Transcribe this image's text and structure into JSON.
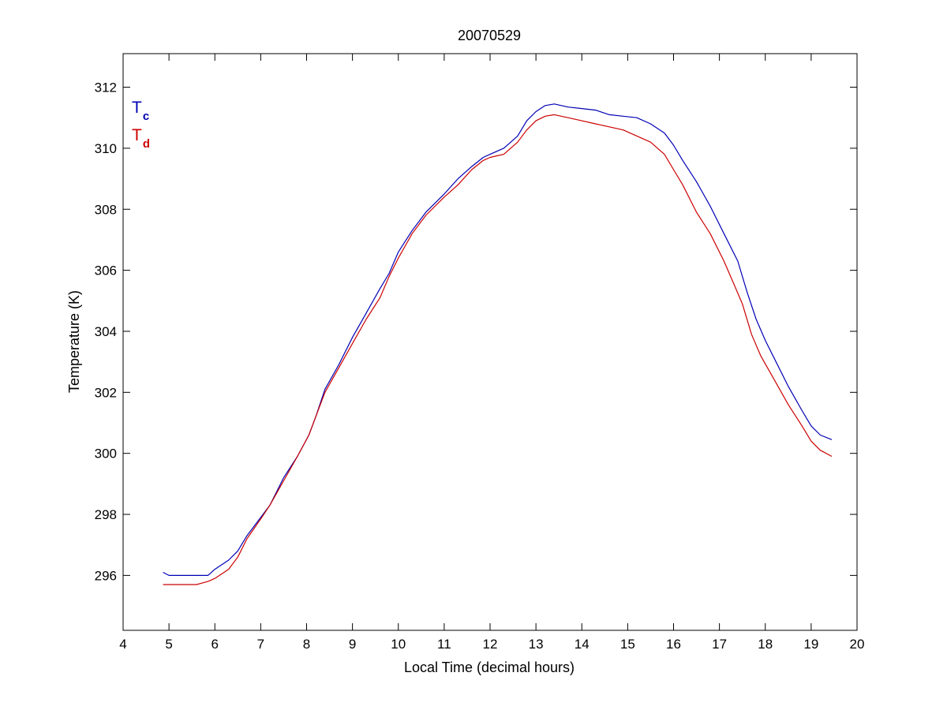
{
  "chart_data": {
    "type": "line",
    "title": "20070529",
    "xlabel": "Local Time (decimal hours)",
    "ylabel": "Temperature (K)",
    "xlim": [
      4,
      20
    ],
    "ylim": [
      294.2,
      313.1
    ],
    "xticks": [
      4,
      5,
      6,
      7,
      8,
      9,
      10,
      11,
      12,
      13,
      14,
      15,
      16,
      17,
      18,
      19,
      20
    ],
    "yticks": [
      296,
      298,
      300,
      302,
      304,
      306,
      308,
      310,
      312
    ],
    "grid": false,
    "legend_position": "top-left",
    "series": [
      {
        "name": "T",
        "subscript": "c",
        "color": "#0000b4",
        "points": [
          [
            4.87,
            296.1
          ],
          [
            5.0,
            296.0
          ],
          [
            5.3,
            296.0
          ],
          [
            5.6,
            296.0
          ],
          [
            5.85,
            296.0
          ],
          [
            6.0,
            296.2
          ],
          [
            6.3,
            296.5
          ],
          [
            6.5,
            296.8
          ],
          [
            6.7,
            297.3
          ],
          [
            7.0,
            297.9
          ],
          [
            7.2,
            298.3
          ],
          [
            7.5,
            299.2
          ],
          [
            7.8,
            299.9
          ],
          [
            8.05,
            300.6
          ],
          [
            8.2,
            301.2
          ],
          [
            8.4,
            302.1
          ],
          [
            8.7,
            302.9
          ],
          [
            9.0,
            303.8
          ],
          [
            9.3,
            304.6
          ],
          [
            9.6,
            305.4
          ],
          [
            9.8,
            305.9
          ],
          [
            10.0,
            306.6
          ],
          [
            10.3,
            307.3
          ],
          [
            10.6,
            307.9
          ],
          [
            11.0,
            308.5
          ],
          [
            11.3,
            309.0
          ],
          [
            11.6,
            309.4
          ],
          [
            11.85,
            309.7
          ],
          [
            12.0,
            309.8
          ],
          [
            12.3,
            310.0
          ],
          [
            12.6,
            310.4
          ],
          [
            12.8,
            310.9
          ],
          [
            13.0,
            311.2
          ],
          [
            13.2,
            311.4
          ],
          [
            13.4,
            311.45
          ],
          [
            13.7,
            311.35
          ],
          [
            14.0,
            311.3
          ],
          [
            14.3,
            311.25
          ],
          [
            14.6,
            311.1
          ],
          [
            14.9,
            311.05
          ],
          [
            15.2,
            311.0
          ],
          [
            15.5,
            310.8
          ],
          [
            15.8,
            310.5
          ],
          [
            16.0,
            310.1
          ],
          [
            16.2,
            309.6
          ],
          [
            16.5,
            308.9
          ],
          [
            16.8,
            308.1
          ],
          [
            17.1,
            307.2
          ],
          [
            17.4,
            306.3
          ],
          [
            17.6,
            305.3
          ],
          [
            17.8,
            304.4
          ],
          [
            18.0,
            303.7
          ],
          [
            18.2,
            303.1
          ],
          [
            18.5,
            302.2
          ],
          [
            18.8,
            301.4
          ],
          [
            19.0,
            300.9
          ],
          [
            19.2,
            300.6
          ],
          [
            19.45,
            300.45
          ]
        ]
      },
      {
        "name": "T",
        "subscript": "d",
        "color": "#cc0000",
        "points": [
          [
            4.87,
            295.7
          ],
          [
            5.0,
            295.7
          ],
          [
            5.3,
            295.7
          ],
          [
            5.6,
            295.7
          ],
          [
            5.85,
            295.8
          ],
          [
            6.0,
            295.9
          ],
          [
            6.3,
            296.2
          ],
          [
            6.5,
            296.6
          ],
          [
            6.7,
            297.2
          ],
          [
            7.0,
            297.85
          ],
          [
            7.2,
            298.3
          ],
          [
            7.5,
            299.1
          ],
          [
            7.8,
            299.9
          ],
          [
            8.05,
            300.6
          ],
          [
            8.2,
            301.2
          ],
          [
            8.4,
            302.0
          ],
          [
            8.7,
            302.8
          ],
          [
            9.0,
            303.6
          ],
          [
            9.3,
            304.4
          ],
          [
            9.6,
            305.1
          ],
          [
            9.8,
            305.8
          ],
          [
            10.0,
            306.4
          ],
          [
            10.3,
            307.2
          ],
          [
            10.6,
            307.8
          ],
          [
            11.0,
            308.4
          ],
          [
            11.3,
            308.8
          ],
          [
            11.6,
            309.3
          ],
          [
            11.85,
            309.6
          ],
          [
            12.0,
            309.7
          ],
          [
            12.3,
            309.8
          ],
          [
            12.6,
            310.2
          ],
          [
            12.8,
            310.6
          ],
          [
            13.0,
            310.9
          ],
          [
            13.2,
            311.05
          ],
          [
            13.4,
            311.1
          ],
          [
            13.7,
            311.0
          ],
          [
            14.0,
            310.9
          ],
          [
            14.3,
            310.8
          ],
          [
            14.6,
            310.7
          ],
          [
            14.9,
            310.6
          ],
          [
            15.2,
            310.4
          ],
          [
            15.5,
            310.2
          ],
          [
            15.8,
            309.8
          ],
          [
            16.0,
            309.3
          ],
          [
            16.2,
            308.8
          ],
          [
            16.5,
            307.9
          ],
          [
            16.8,
            307.2
          ],
          [
            17.1,
            306.3
          ],
          [
            17.3,
            305.6
          ],
          [
            17.5,
            304.9
          ],
          [
            17.7,
            303.9
          ],
          [
            17.9,
            303.2
          ],
          [
            18.2,
            302.4
          ],
          [
            18.5,
            301.6
          ],
          [
            18.8,
            300.9
          ],
          [
            19.0,
            300.4
          ],
          [
            19.2,
            300.1
          ],
          [
            19.45,
            299.9
          ]
        ]
      }
    ]
  }
}
